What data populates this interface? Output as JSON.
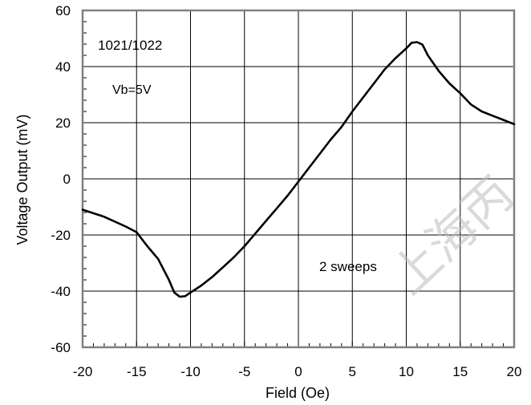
{
  "chart_data": {
    "type": "line",
    "title": "",
    "xlabel": "Field (Oe)",
    "ylabel": "Voltage Output (mV)",
    "xlim": [
      -20,
      20
    ],
    "ylim": [
      -60,
      60
    ],
    "x_ticks": [
      -20,
      -15,
      -10,
      -5,
      0,
      5,
      10,
      15,
      20
    ],
    "y_ticks": [
      -60,
      -40,
      -20,
      0,
      20,
      40,
      60
    ],
    "x_tick_labels": [
      "-20",
      "-15",
      "-10",
      "-5",
      "0",
      "5",
      "10",
      "15",
      "20"
    ],
    "y_tick_labels": [
      "-60",
      "-40",
      "-20",
      "0",
      "20",
      "40",
      "60"
    ],
    "grid": true,
    "line_color": "#000000",
    "grid_color": "#000000",
    "frame_color": "#808080",
    "series": [
      {
        "x": [
          -20,
          -18,
          -16,
          -15,
          -14,
          -13,
          -12,
          -11.5,
          -11,
          -10.5,
          -10,
          -9,
          -8,
          -7,
          -6,
          -5,
          -4,
          -3,
          -2,
          -1,
          0,
          1,
          2,
          3,
          4,
          5,
          6,
          7,
          8,
          9,
          10,
          10.5,
          11,
          11.5,
          12,
          13,
          14,
          15,
          16,
          17,
          18,
          19,
          20
        ],
        "y": [
          -11,
          -13.5,
          -17,
          -19,
          -24,
          -28.5,
          -36,
          -40.5,
          -42,
          -41.8,
          -40.5,
          -38,
          -35,
          -31.5,
          -28,
          -24,
          -19.5,
          -15,
          -10.5,
          -6,
          -1,
          4,
          9,
          14,
          18.5,
          24,
          29,
          34,
          39,
          43,
          46.5,
          48.5,
          48.7,
          47.8,
          44,
          38.5,
          34,
          30.5,
          26.5,
          24,
          22.5,
          21,
          19.5
        ]
      }
    ],
    "annotations": [
      "1021/1022",
      "Vb=5V",
      "2 sweeps"
    ]
  },
  "watermark": "上海丙",
  "colors": {
    "watermark": "#bdbdbd"
  }
}
